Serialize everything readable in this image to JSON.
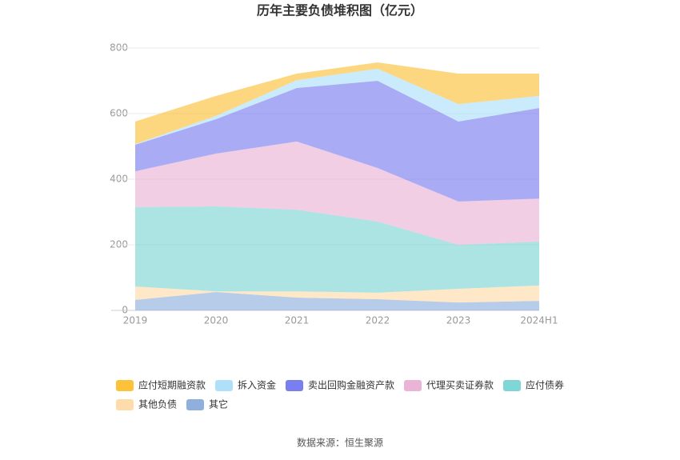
{
  "chart_data": {
    "type": "stacked_area",
    "title": "历年主要负债堆积图（亿元）",
    "categories": [
      "2019",
      "2020",
      "2021",
      "2022",
      "2023",
      "2024H1"
    ],
    "ylim": [
      0,
      800
    ],
    "yticks": [
      0,
      200,
      400,
      600,
      800
    ],
    "grid": true,
    "series": [
      {
        "name": "其它",
        "color": "#8fb0dc",
        "values": [
          32,
          56,
          39,
          34,
          24,
          29
        ]
      },
      {
        "name": "其他负债",
        "color": "#fddcaa",
        "values": [
          41,
          2,
          19,
          20,
          42,
          47
        ]
      },
      {
        "name": "应付债券",
        "color": "#7fd6d6",
        "values": [
          242,
          259,
          249,
          217,
          134,
          134
        ]
      },
      {
        "name": "代理买卖证券款",
        "color": "#e9b4d6",
        "values": [
          109,
          161,
          208,
          163,
          132,
          131
        ]
      },
      {
        "name": "卖出回购金融资产款",
        "color": "#7b7ef0",
        "values": [
          81,
          105,
          163,
          266,
          244,
          276
        ]
      },
      {
        "name": "拆入资金",
        "color": "#aee0fa",
        "values": [
          2,
          10,
          24,
          37,
          53,
          37
        ]
      },
      {
        "name": "应付短期融资款",
        "color": "#fbc23a",
        "values": [
          69,
          61,
          20,
          19,
          93,
          68
        ]
      }
    ],
    "legend_order": [
      6,
      5,
      4,
      3,
      2,
      1,
      0
    ],
    "source": "数据来源：恒生聚源"
  }
}
